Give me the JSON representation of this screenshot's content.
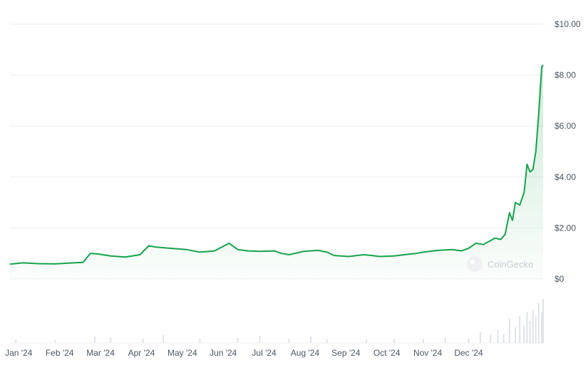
{
  "chart_data": {
    "type": "area",
    "title": "",
    "xlabel": "",
    "ylabel": "",
    "ylim": [
      0,
      10
    ],
    "y_ticks": [
      "$10.00",
      "$8.00",
      "$6.00",
      "$4.00",
      "$2.00",
      "$0"
    ],
    "y_tick_values": [
      10,
      8,
      6,
      4,
      2,
      0
    ],
    "x_ticks": [
      "Jan '24",
      "Feb '24",
      "Mar '24",
      "Apr '24",
      "May '24",
      "Jun '24",
      "Jul '24",
      "Aug '24",
      "Sep '24",
      "Oct '24",
      "Nov '24",
      "Dec '24"
    ],
    "x_tick_dates": [
      "2024-01-07",
      "2024-02-04",
      "2024-03-03",
      "2024-03-31",
      "2024-04-28",
      "2024-05-26",
      "2024-06-23",
      "2024-07-21",
      "2024-08-18",
      "2024-09-15",
      "2024-10-13",
      "2024-11-10"
    ],
    "x_range": [
      "2024-01-01",
      "2024-12-31"
    ],
    "grid": true,
    "legend": "none",
    "line_color": "#16a34a",
    "series": [
      {
        "x": [
          "2024-01-01",
          "2024-01-10",
          "2024-01-20",
          "2024-02-01",
          "2024-02-10",
          "2024-02-20",
          "2024-02-25",
          "2024-03-01",
          "2024-03-10",
          "2024-03-20",
          "2024-03-30",
          "2024-04-05",
          "2024-04-10",
          "2024-04-20",
          "2024-05-01",
          "2024-05-10",
          "2024-05-20",
          "2024-05-30",
          "2024-06-05",
          "2024-06-12",
          "2024-06-20",
          "2024-06-30",
          "2024-07-05",
          "2024-07-10",
          "2024-07-20",
          "2024-07-30",
          "2024-08-05",
          "2024-08-10",
          "2024-08-20",
          "2024-08-30",
          "2024-09-05",
          "2024-09-10",
          "2024-09-20",
          "2024-09-30",
          "2024-10-05",
          "2024-10-10",
          "2024-10-20",
          "2024-10-30",
          "2024-11-05",
          "2024-11-10",
          "2024-11-15",
          "2024-11-20",
          "2024-11-25",
          "2024-11-28",
          "2024-12-02",
          "2024-12-05",
          "2024-12-08",
          "2024-12-10",
          "2024-12-12",
          "2024-12-15",
          "2024-12-18",
          "2024-12-20",
          "2024-12-22",
          "2024-12-24",
          "2024-12-26",
          "2024-12-28",
          "2024-12-30",
          "2024-12-31"
        ],
        "values": [
          0.58,
          0.63,
          0.6,
          0.59,
          0.62,
          0.65,
          1.0,
          0.98,
          0.9,
          0.86,
          0.95,
          1.3,
          1.25,
          1.2,
          1.15,
          1.05,
          1.1,
          1.4,
          1.15,
          1.1,
          1.08,
          1.1,
          1.0,
          0.95,
          1.08,
          1.12,
          1.05,
          0.92,
          0.88,
          0.95,
          0.92,
          0.88,
          0.9,
          0.97,
          1.0,
          1.05,
          1.12,
          1.15,
          1.1,
          1.2,
          1.4,
          1.35,
          1.5,
          1.6,
          1.55,
          1.75,
          2.6,
          2.3,
          3.0,
          2.9,
          3.4,
          4.5,
          4.2,
          4.3,
          5.0,
          6.5,
          8.3,
          8.4
        ]
      }
    ],
    "watermark": "CoinGecko",
    "volume": {
      "x": [
        "2024-01-05",
        "2024-02-01",
        "2024-02-28",
        "2024-03-10",
        "2024-04-01",
        "2024-04-15",
        "2024-05-10",
        "2024-06-05",
        "2024-06-20",
        "2024-07-10",
        "2024-07-25",
        "2024-08-05",
        "2024-09-01",
        "2024-09-20",
        "2024-10-10",
        "2024-10-25",
        "2024-11-10",
        "2024-11-18",
        "2024-11-25",
        "2024-11-30",
        "2024-12-04",
        "2024-12-08",
        "2024-12-12",
        "2024-12-15",
        "2024-12-18",
        "2024-12-20",
        "2024-12-22",
        "2024-12-24",
        "2024-12-26",
        "2024-12-28",
        "2024-12-30",
        "2024-12-31"
      ],
      "values": [
        0.08,
        0.07,
        0.15,
        0.12,
        0.1,
        0.18,
        0.1,
        0.12,
        0.16,
        0.1,
        0.15,
        0.09,
        0.08,
        0.1,
        0.09,
        0.12,
        0.1,
        0.25,
        0.18,
        0.3,
        0.2,
        0.55,
        0.35,
        0.6,
        0.4,
        0.7,
        0.5,
        0.75,
        0.6,
        0.9,
        0.7,
        1.0
      ]
    }
  }
}
